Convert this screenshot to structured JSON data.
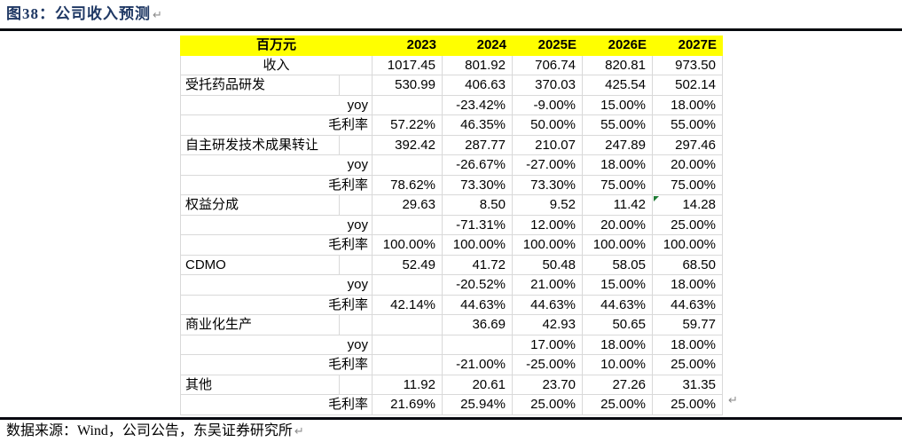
{
  "header": {
    "title": "图38：公司收入预测"
  },
  "marks": {
    "return_mark": "↵"
  },
  "table": {
    "unit_label": "百万元",
    "columns": [
      "2023",
      "2024",
      "2025E",
      "2026E",
      "2027E"
    ],
    "rows": [
      {
        "label": "收入",
        "align": "center",
        "values": [
          "1017.45",
          "801.92",
          "706.74",
          "820.81",
          "973.50"
        ]
      },
      {
        "label": "受托药品研发",
        "align": "left",
        "values": [
          "530.99",
          "406.63",
          "370.03",
          "425.54",
          "502.14"
        ]
      },
      {
        "label": "yoy",
        "align": "right",
        "values": [
          "",
          "-23.42%",
          "-9.00%",
          "15.00%",
          "18.00%"
        ]
      },
      {
        "label": "毛利率",
        "align": "right",
        "values": [
          "57.22%",
          "46.35%",
          "50.00%",
          "55.00%",
          "55.00%"
        ]
      },
      {
        "label": "自主研发技术成果转让",
        "align": "left",
        "values": [
          "392.42",
          "287.77",
          "210.07",
          "247.89",
          "297.46"
        ]
      },
      {
        "label": "yoy",
        "align": "right",
        "values": [
          "",
          "-26.67%",
          "-27.00%",
          "18.00%",
          "20.00%"
        ]
      },
      {
        "label": "毛利率",
        "align": "right",
        "values": [
          "78.62%",
          "73.30%",
          "73.30%",
          "75.00%",
          "75.00%"
        ]
      },
      {
        "label": "权益分成",
        "align": "left",
        "values": [
          "29.63",
          "8.50",
          "9.52",
          "11.42",
          "14.28"
        ]
      },
      {
        "label": "yoy",
        "align": "right",
        "values": [
          "",
          "-71.31%",
          "12.00%",
          "20.00%",
          "25.00%"
        ]
      },
      {
        "label": "毛利率",
        "align": "right",
        "values": [
          "100.00%",
          "100.00%",
          "100.00%",
          "100.00%",
          "100.00%"
        ]
      },
      {
        "label": "CDMO",
        "align": "left",
        "values": [
          "52.49",
          "41.72",
          "50.48",
          "58.05",
          "68.50"
        ]
      },
      {
        "label": "yoy",
        "align": "right",
        "values": [
          "",
          "-20.52%",
          "21.00%",
          "15.00%",
          "18.00%"
        ]
      },
      {
        "label": "毛利率",
        "align": "right",
        "values": [
          "42.14%",
          "44.63%",
          "44.63%",
          "44.63%",
          "44.63%"
        ]
      },
      {
        "label": "商业化生产",
        "align": "left",
        "values": [
          "",
          "36.69",
          "42.93",
          "50.65",
          "59.77"
        ]
      },
      {
        "label": "yoy",
        "align": "right",
        "values": [
          "",
          "",
          "17.00%",
          "18.00%",
          "18.00%"
        ]
      },
      {
        "label": "毛利率",
        "align": "right",
        "values": [
          "",
          "-21.00%",
          "-25.00%",
          "10.00%",
          "25.00%"
        ]
      },
      {
        "label": "其他",
        "align": "left",
        "values": [
          "11.92",
          "20.61",
          "23.70",
          "27.26",
          "31.35"
        ]
      },
      {
        "label": "毛利率",
        "align": "right",
        "values": [
          "21.69%",
          "25.94%",
          "25.00%",
          "25.00%",
          "25.00%"
        ]
      }
    ],
    "flag_marker": {
      "row_index": 7,
      "col_index": 4,
      "meaning": "excel-error-flag"
    }
  },
  "footer": {
    "source": "数据来源：Wind，公司公告，东吴证券研究所"
  },
  "colors": {
    "title_navy": "#1F3864",
    "header_bg": "#FFFF00",
    "grid_gray": "#D9D9D9",
    "rule_black": "#06090F",
    "flag_green": "#1E7B34",
    "return_mark_gray": "#8C8C8C"
  }
}
